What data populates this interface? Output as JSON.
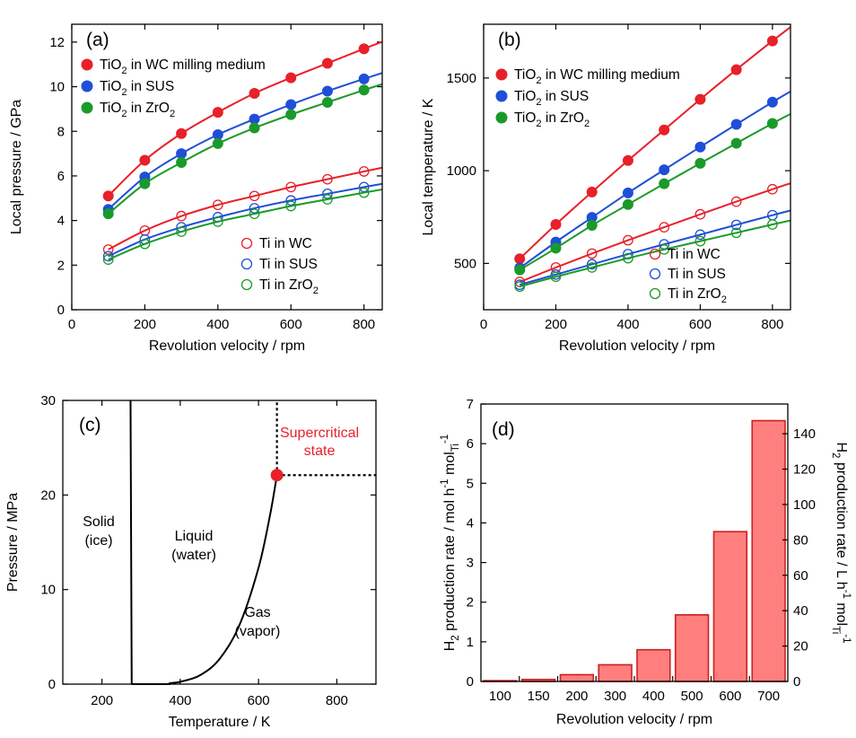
{
  "chart_data": [
    {
      "panel": "(a)",
      "type": "scatter",
      "xlabel": "Revolution velocity / rpm",
      "ylabel": "Local pressure / GPa",
      "xlim": [
        0,
        850
      ],
      "ylim": [
        0,
        12.8
      ],
      "xticks": [
        0,
        200,
        400,
        600,
        800
      ],
      "yticks": [
        0,
        2,
        4,
        6,
        8,
        10,
        12
      ],
      "x": [
        100,
        200,
        300,
        400,
        500,
        600,
        700,
        800
      ],
      "legend_upper": "top-left",
      "legend_lower": "bottom-right",
      "series": [
        {
          "name": "TiO",
          "sub": "2",
          "tail": " in WC milling medium",
          "color": "#e8202a",
          "filled": true,
          "values": [
            5.1,
            6.7,
            7.9,
            8.85,
            9.7,
            10.4,
            11.05,
            11.7
          ]
        },
        {
          "name": "TiO",
          "sub": "2",
          "tail": " in SUS",
          "color": "#1f4fd8",
          "filled": true,
          "values": [
            4.5,
            5.95,
            7.0,
            7.85,
            8.55,
            9.2,
            9.8,
            10.35
          ]
        },
        {
          "name": "TiO",
          "sub": "2",
          "tail": " in ZrO",
          "sub2": "2",
          "color": "#1a9a2a",
          "filled": true,
          "values": [
            4.3,
            5.65,
            6.6,
            7.45,
            8.15,
            8.75,
            9.3,
            9.85
          ]
        },
        {
          "name": "Ti in WC",
          "color": "#e8202a",
          "filled": false,
          "values": [
            2.7,
            3.55,
            4.2,
            4.7,
            5.1,
            5.5,
            5.85,
            6.2
          ]
        },
        {
          "name": "Ti in SUS",
          "color": "#1f4fd8",
          "filled": false,
          "values": [
            2.4,
            3.15,
            3.7,
            4.15,
            4.55,
            4.9,
            5.2,
            5.5
          ]
        },
        {
          "name": "Ti in ZrO",
          "sub": "2",
          "color": "#1a9a2a",
          "filled": false,
          "values": [
            2.25,
            2.95,
            3.5,
            3.95,
            4.3,
            4.65,
            4.95,
            5.25
          ]
        }
      ]
    },
    {
      "panel": "(b)",
      "type": "scatter",
      "xlabel": "Revolution velocity / rpm",
      "ylabel": "Local temperature / K",
      "xlim": [
        0,
        850
      ],
      "ylim": [
        250,
        1790
      ],
      "xticks": [
        0,
        200,
        400,
        600,
        800
      ],
      "yticks": [
        500,
        1000,
        1500
      ],
      "x": [
        100,
        200,
        300,
        400,
        500,
        600,
        700,
        800
      ],
      "legend_upper": "top-left",
      "legend_lower": "bottom-right",
      "series": [
        {
          "name": "TiO",
          "sub": "2",
          "tail": " in WC milling medium",
          "color": "#e8202a",
          "filled": true,
          "values": [
            525,
            710,
            885,
            1055,
            1220,
            1385,
            1545,
            1700
          ]
        },
        {
          "name": "TiO",
          "sub": "2",
          "tail": " in SUS",
          "color": "#1f4fd8",
          "filled": true,
          "values": [
            475,
            615,
            748,
            880,
            1005,
            1128,
            1250,
            1370
          ]
        },
        {
          "name": "TiO",
          "sub": "2",
          "tail": " in ZrO",
          "sub2": "2",
          "color": "#1a9a2a",
          "filled": true,
          "values": [
            465,
            582,
            705,
            818,
            930,
            1040,
            1148,
            1255
          ]
        },
        {
          "name": "Ti in WC",
          "color": "#e8202a",
          "filled": false,
          "values": [
            400,
            478,
            553,
            625,
            695,
            765,
            833,
            900
          ]
        },
        {
          "name": "Ti in SUS",
          "color": "#1f4fd8",
          "filled": false,
          "values": [
            385,
            440,
            495,
            550,
            603,
            655,
            708,
            760
          ]
        },
        {
          "name": "Ti in ZrO",
          "sub": "2",
          "color": "#1a9a2a",
          "filled": false,
          "values": [
            375,
            428,
            478,
            528,
            575,
            620,
            665,
            710
          ]
        }
      ]
    },
    {
      "panel": "(c)",
      "type": "line",
      "xlabel": "Temperature / K",
      "ylabel": "Pressure / MPa",
      "xlim": [
        100,
        900
      ],
      "ylim": [
        0,
        30
      ],
      "xticks": [
        200,
        400,
        600,
        800
      ],
      "yticks": [
        0,
        10,
        20,
        30
      ],
      "melting_line": [
        [
          273,
          30
        ],
        [
          276,
          0
        ]
      ],
      "vapor_curve": [
        [
          373,
          0.1
        ],
        [
          400,
          0.25
        ],
        [
          450,
          0.93
        ],
        [
          500,
          2.64
        ],
        [
          550,
          6.12
        ],
        [
          600,
          12.3
        ],
        [
          630,
          18.0
        ],
        [
          647,
          22.1
        ]
      ],
      "critical_point": {
        "x": 647,
        "y": 22.1,
        "color": "#e8202a"
      },
      "regions": {
        "solid": [
          "Solid",
          "(ice)"
        ],
        "liquid": [
          "Liquid",
          "(water)"
        ],
        "gas": [
          "Gas",
          "(vapor)"
        ],
        "supercritical": [
          "Supercritical",
          "state"
        ]
      },
      "supercritical_color": "#e8202a"
    },
    {
      "panel": "(d)",
      "type": "bar",
      "xlabel": "Revolution velocity / rpm",
      "ylabel": "production rate / mol h",
      "ylabel_prefix": "H",
      "ylabel_sub": "2",
      "ylabel_sup": "-1",
      "ylabel_tail": "mol",
      "ylabel_tail_sub": "Ti",
      "ylabel_tail_sup": "-1",
      "y2label": "production rate / L h",
      "y2label_prefix": "H",
      "y2label_sub": "2",
      "y2label_sup": "-1",
      "y2label_tail": "mol",
      "y2label_tail_sub": "Ti",
      "y2label_tail_sup": "-1",
      "categories": [
        "100",
        "150",
        "200",
        "300",
        "400",
        "500",
        "600",
        "700"
      ],
      "values": [
        0.02,
        0.05,
        0.17,
        0.42,
        0.8,
        1.68,
        3.78,
        6.58
      ],
      "ylim": [
        0,
        7
      ],
      "y2lim": [
        0,
        156.8
      ],
      "yticks": [
        0,
        1,
        2,
        3,
        4,
        5,
        6,
        7
      ],
      "y2ticks": [
        0,
        20,
        40,
        60,
        80,
        100,
        120,
        140
      ],
      "bar_color": "#ff7f7f",
      "bar_edge": "#cc1f1f"
    }
  ]
}
